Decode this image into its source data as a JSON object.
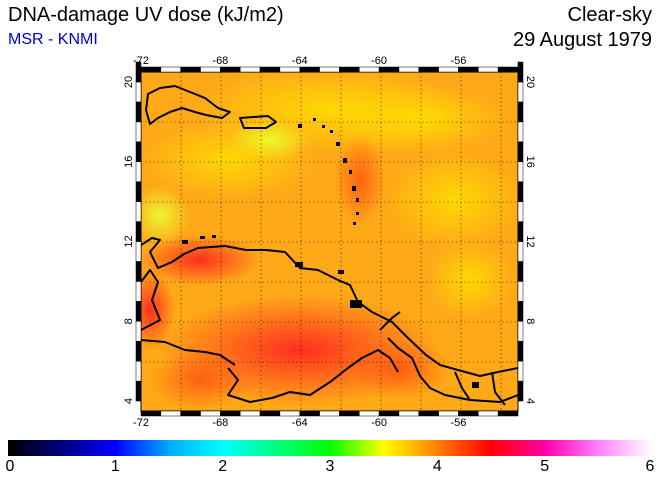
{
  "header": {
    "title": "DNA-damage UV dose (kJ/m2)",
    "subtitle": "MSR - KNMI",
    "condition": "Clear-sky",
    "date": "29 August 1979"
  },
  "map": {
    "lon_range": [
      -72,
      -53
    ],
    "lat_range": [
      3.5,
      20.5
    ],
    "lon_ticks": [
      -72,
      -68,
      -64,
      -60,
      -56
    ],
    "lat_ticks": [
      4,
      8,
      12,
      16,
      20
    ],
    "gridlines": true,
    "coastline_color": "#000000"
  },
  "colorbar": {
    "min": 0,
    "max": 6,
    "labels": [
      "0",
      "1",
      "2",
      "3",
      "4",
      "5",
      "6"
    ],
    "stops": [
      {
        "v": 0.0,
        "c": "#000000"
      },
      {
        "v": 0.5,
        "c": "#000080"
      },
      {
        "v": 1.0,
        "c": "#0000ff"
      },
      {
        "v": 1.5,
        "c": "#00aaff"
      },
      {
        "v": 2.0,
        "c": "#00ffff"
      },
      {
        "v": 2.5,
        "c": "#00ff80"
      },
      {
        "v": 3.0,
        "c": "#00ff00"
      },
      {
        "v": 3.5,
        "c": "#ffff00"
      },
      {
        "v": 4.0,
        "c": "#ff8000"
      },
      {
        "v": 4.5,
        "c": "#ff0000"
      },
      {
        "v": 5.0,
        "c": "#ff00aa"
      },
      {
        "v": 5.5,
        "c": "#ff80ff"
      },
      {
        "v": 6.0,
        "c": "#ffffff"
      }
    ]
  },
  "chart_data": {
    "type": "heatmap",
    "value_range_shown": [
      3.5,
      4.6
    ],
    "dominant_value": 4.0
  }
}
